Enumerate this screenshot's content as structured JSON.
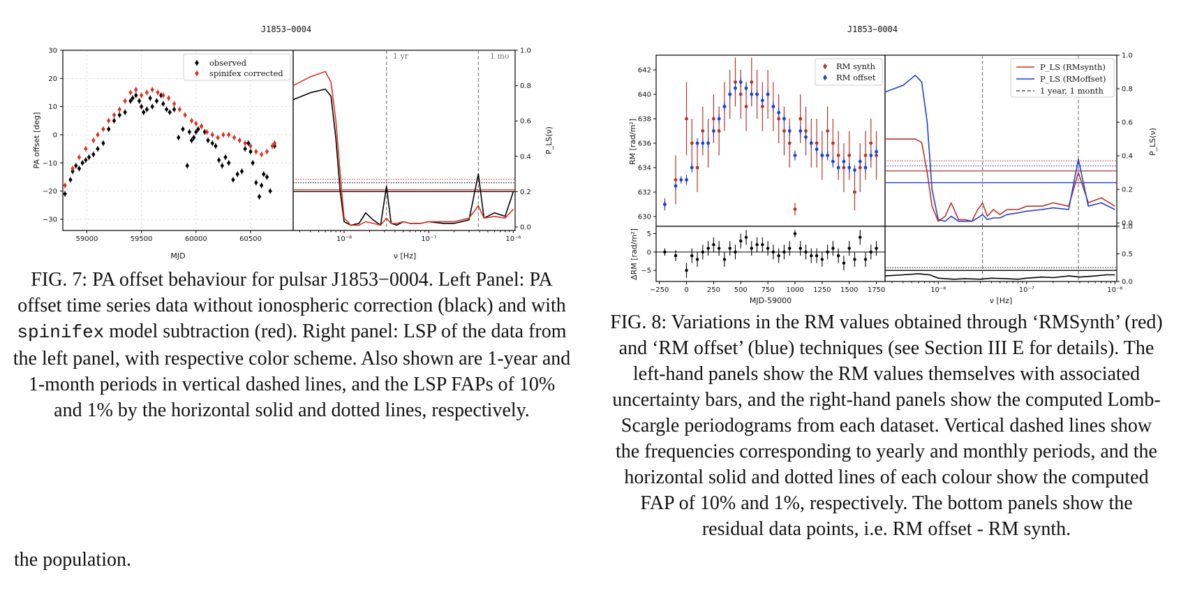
{
  "fig7": {
    "title": "J1853−0004",
    "caption_parts": [
      "FIG. 7: PA offset behaviour for pulsar J1853−0004. Left Panel: PA offset time series data without ionospheric correction (black) and with ",
      "spinifex",
      " model subtraction (red). Right panel: LSP of the data from the left panel, with respective color scheme. Also shown are 1-year and 1-month periods in vertical dashed lines, and the LSP FAPs of 10% and 1% by the horizontal solid and dotted lines, respectively."
    ],
    "legend": [
      "observed",
      "spinifex corrected"
    ],
    "vline_labels": [
      "1 yr",
      "1 mo"
    ],
    "colors": {
      "observed": "#000000",
      "corrected": "#e0301e"
    }
  },
  "fig8": {
    "title": "J1853−0004",
    "caption": "FIG. 8: Variations in the RM values obtained through ‘RMSynth’ (red) and ‘RM offset’ (blue) techniques (see Section III E for details). The left-hand panels show the RM values themselves with associated uncertainty bars, and the right-hand panels show the computed Lomb-Scargle periodograms from each dataset. Vertical dashed lines show the frequencies corresponding to yearly and monthly periods, and the horizontal solid and dotted lines of each colour show the computed FAP of 10% and 1%, respectively. The bottom panels show the residual data points, i.e. RM offset - RM synth.",
    "legend_left": [
      "RM synth",
      "RM offset"
    ],
    "legend_right": [
      "P_LS (RMsynth)",
      "P_LS (RMoffset)",
      "1 year, 1 month"
    ],
    "colors": {
      "rmsynth": "#b5322a",
      "rmoffset": "#1f3fd0",
      "residual": "#000000"
    }
  },
  "body_text": "the population.",
  "chart_data": [
    {
      "type": "scatter",
      "title": "J1853−0004",
      "xlabel": "MJD",
      "ylabel": "PA offset [deg]",
      "xlim": [
        58780,
        60890
      ],
      "ylim": [
        -34,
        30
      ],
      "xticks": [
        59000,
        59500,
        60000,
        60500
      ],
      "yticks": [
        -30,
        -20,
        -10,
        0,
        10,
        20,
        30
      ],
      "legend": "top-right",
      "grid": true,
      "series": [
        {
          "name": "observed",
          "x": [
            58800,
            58850,
            58870,
            58900,
            58930,
            58960,
            58990,
            59020,
            59060,
            59100,
            59150,
            59200,
            59250,
            59300,
            59350,
            59400,
            59420,
            59450,
            59480,
            59500,
            59520,
            59550,
            59580,
            59600,
            59640,
            59680,
            59700,
            59730,
            59760,
            59800,
            59840,
            59880,
            59920,
            59940,
            59960,
            59980,
            60000,
            60020,
            60050,
            60080,
            60110,
            60150,
            60180,
            60210,
            60240,
            60270,
            60300,
            60340,
            60380,
            60420,
            60450,
            60480,
            60500,
            60520,
            60550,
            60580,
            60600,
            60620,
            60650,
            60680,
            60720
          ],
          "y": [
            -21,
            -16,
            -13,
            -11,
            -12,
            -10,
            -9,
            -8,
            -7,
            -5,
            -3,
            2,
            5,
            7,
            8,
            12,
            13,
            14,
            12,
            10,
            8,
            9,
            13,
            10,
            12,
            14,
            11,
            9,
            8,
            9,
            -1,
            2,
            -11,
            1,
            -2,
            -1,
            1,
            2,
            3,
            1,
            -2,
            -3,
            -4,
            -9,
            -11,
            -8,
            -10,
            -16,
            -14,
            -13,
            -5,
            -3,
            -6,
            -10,
            -17,
            -22,
            -18,
            -14,
            -15,
            -20,
            -4
          ]
        },
        {
          "name": "spinifex corrected",
          "x": [
            58800,
            58870,
            58930,
            58990,
            59060,
            59100,
            59150,
            59200,
            59250,
            59300,
            59350,
            59400,
            59450,
            59500,
            59550,
            59600,
            59650,
            59700,
            59750,
            59800,
            59850,
            59900,
            59960,
            60000,
            60050,
            60100,
            60150,
            60200,
            60250,
            60300,
            60350,
            60400,
            60450,
            60500,
            60550,
            60600,
            60650,
            60700,
            60720
          ],
          "y": [
            -18,
            -12,
            -8,
            -5,
            -2,
            0,
            2,
            5,
            7,
            9,
            12,
            15,
            16,
            14,
            15,
            16,
            15,
            14,
            13,
            11,
            9,
            7,
            5,
            4,
            3,
            1,
            0,
            -1,
            0,
            0,
            -1,
            -2,
            -3,
            -4,
            -6,
            -7,
            -6,
            -4,
            -3
          ]
        }
      ]
    },
    {
      "type": "line",
      "xlabel": "ν [Hz]",
      "ylabel": "P_LS(ν)",
      "xscale": "log",
      "xlim": [
        2.5e-09,
        1.05e-06
      ],
      "ylim": [
        -0.02,
        1.0
      ],
      "xticks": [
        "10⁻⁸",
        "10⁻⁷",
        "10⁻⁶"
      ],
      "yticks": [
        0.0,
        0.2,
        0.4,
        0.6,
        0.8,
        1.0
      ],
      "vlines": [
        3.17e-08,
        3.86e-07
      ],
      "series": [
        {
          "name": "observed",
          "x": [
            2.5e-09,
            4e-09,
            6e-09,
            7e-09,
            8e-09,
            9e-09,
            1e-08,
            1.2e-08,
            1.5e-08,
            1.8e-08,
            2.2e-08,
            2.7e-08,
            3.17e-08,
            3.6e-08,
            4.2e-08,
            5e-08,
            6e-08,
            8e-08,
            1e-07,
            1.5e-07,
            2e-07,
            3e-07,
            3.86e-07,
            4.5e-07,
            6e-07,
            8e-07,
            1e-06
          ],
          "y": [
            0.72,
            0.76,
            0.78,
            0.74,
            0.5,
            0.2,
            0.03,
            0.01,
            0.02,
            0.08,
            0.04,
            0.01,
            0.23,
            0.02,
            0.01,
            0.03,
            0.02,
            0.02,
            0.03,
            0.02,
            0.02,
            0.04,
            0.3,
            0.05,
            0.08,
            0.06,
            0.2
          ]
        },
        {
          "name": "spinifex corrected",
          "x": [
            2.5e-09,
            4e-09,
            6e-09,
            7e-09,
            8e-09,
            9e-09,
            1e-08,
            1.2e-08,
            1.5e-08,
            1.8e-08,
            2.2e-08,
            2.7e-08,
            3.17e-08,
            3.6e-08,
            4.2e-08,
            5e-08,
            6e-08,
            8e-08,
            1e-07,
            1.5e-07,
            2e-07,
            3e-07,
            3.86e-07,
            4.5e-07,
            6e-07,
            8e-07,
            1e-06
          ],
          "y": [
            0.8,
            0.85,
            0.88,
            0.82,
            0.6,
            0.3,
            0.05,
            0.01,
            0.01,
            0.03,
            0.02,
            0.01,
            0.05,
            0.02,
            0.02,
            0.03,
            0.02,
            0.02,
            0.03,
            0.03,
            0.03,
            0.05,
            0.12,
            0.05,
            0.06,
            0.05,
            0.1
          ]
        }
      ],
      "fap": {
        "observed": {
          "p10": 0.2,
          "p1": 0.25
        },
        "corrected": {
          "p10": 0.21,
          "p1": 0.27
        }
      }
    },
    {
      "type": "scatter",
      "title": "J1853−0004",
      "ylabel": "RM [rad/m²]",
      "xlim": [
        -280,
        1830
      ],
      "ylim": [
        629.2,
        643.2
      ],
      "yticks": [
        630,
        632,
        634,
        636,
        638,
        640,
        642
      ],
      "legend": "top-right",
      "series": [
        {
          "name": "RM synth",
          "x": [
            -200,
            -100,
            0,
            50,
            100,
            150,
            200,
            250,
            300,
            350,
            400,
            450,
            500,
            550,
            600,
            650,
            700,
            750,
            800,
            850,
            900,
            950,
            1000,
            1050,
            1100,
            1150,
            1200,
            1250,
            1300,
            1350,
            1400,
            1450,
            1500,
            1550,
            1600,
            1650,
            1700,
            1750
          ],
          "y": [
            631,
            633,
            638,
            636,
            634,
            637,
            636,
            638,
            637,
            639,
            640,
            641,
            640,
            639,
            641,
            640,
            639,
            640,
            639,
            638,
            637,
            636,
            630.6,
            638,
            637,
            636,
            636,
            635,
            637,
            636,
            635,
            634,
            635,
            632,
            634,
            635,
            636,
            635
          ],
          "err": [
            0.5,
            2,
            3,
            2,
            2,
            2,
            2,
            2,
            2,
            2,
            2,
            2,
            2,
            2,
            2,
            2,
            2,
            2,
            2,
            2,
            2,
            2,
            0.5,
            2,
            2,
            2,
            2,
            2,
            2,
            2,
            2,
            2,
            2,
            1.5,
            2,
            2,
            2,
            2
          ]
        },
        {
          "name": "RM offset",
          "x": [
            -200,
            -100,
            -50,
            0,
            50,
            100,
            150,
            200,
            250,
            300,
            350,
            400,
            450,
            500,
            550,
            600,
            650,
            700,
            750,
            800,
            850,
            900,
            950,
            1000,
            1050,
            1100,
            1150,
            1200,
            1250,
            1300,
            1350,
            1400,
            1450,
            1500,
            1550,
            1600,
            1650,
            1700,
            1750
          ],
          "y": [
            631,
            632.5,
            633,
            633,
            634,
            636,
            636,
            636,
            637,
            638,
            639,
            640,
            640.5,
            641,
            640.5,
            640,
            640,
            639.5,
            640,
            639,
            638.5,
            638,
            637,
            635,
            637,
            636.5,
            636,
            635.5,
            635,
            635,
            634.5,
            634,
            634.5,
            634,
            633.8,
            634.5,
            634,
            635,
            635.3
          ],
          "err": [
            0.3,
            0.3,
            0.3,
            0.4,
            0.4,
            0.4,
            0.4,
            0.4,
            0.4,
            0.4,
            0.4,
            0.4,
            0.4,
            0.4,
            0.4,
            0.4,
            0.4,
            0.4,
            0.4,
            0.4,
            0.4,
            0.4,
            0.4,
            0.4,
            0.4,
            0.4,
            0.4,
            0.4,
            0.4,
            0.4,
            0.4,
            0.4,
            0.4,
            0.4,
            0.4,
            0.4,
            0.4,
            0.4,
            0.4
          ]
        }
      ]
    },
    {
      "type": "scatter",
      "xlabel": "MJD-59000",
      "ylabel": "ΔRM [rad/m²]",
      "xlim": [
        -280,
        1830
      ],
      "ylim": [
        -8,
        7
      ],
      "xticks": [
        -250,
        0,
        250,
        500,
        750,
        1000,
        1250,
        1500,
        1750
      ],
      "yticks": [
        -5,
        0,
        5
      ],
      "series": [
        {
          "name": "residual",
          "x": [
            -200,
            -100,
            0,
            50,
            100,
            150,
            200,
            250,
            300,
            350,
            400,
            450,
            500,
            550,
            600,
            650,
            700,
            750,
            800,
            850,
            900,
            950,
            1000,
            1050,
            1100,
            1150,
            1200,
            1250,
            1300,
            1350,
            1400,
            1450,
            1500,
            1550,
            1600,
            1650,
            1700,
            1750
          ],
          "y": [
            0,
            -1,
            -5,
            -1,
            -2,
            0,
            1,
            2,
            1,
            -2,
            1,
            0,
            3,
            4,
            1,
            2,
            2,
            1,
            0,
            -1,
            0,
            1,
            5,
            1,
            0,
            -1,
            -1,
            -2,
            0,
            1,
            -1,
            -3,
            1,
            -2,
            4,
            -2,
            0,
            1
          ],
          "err": [
            1,
            1.5,
            2,
            2,
            2,
            2,
            2,
            2,
            2,
            2,
            2,
            2,
            2,
            2,
            2,
            2,
            2,
            2,
            2,
            2,
            2,
            2,
            1,
            2,
            2,
            2,
            2,
            2,
            2,
            2,
            2,
            2,
            2,
            2,
            2,
            2,
            2,
            2
          ]
        }
      ]
    },
    {
      "type": "line",
      "xscale": "log",
      "xlim": [
        2.5e-09,
        1.05e-06
      ],
      "ylim": [
        -0.02,
        1.0
      ],
      "yticks": [
        0.0,
        0.2,
        0.4,
        0.6,
        0.8,
        1.0
      ],
      "vlines": [
        3.17e-08,
        3.86e-07
      ],
      "series": [
        {
          "name": "P_LS (RMsynth)",
          "x": [
            2.5e-09,
            4e-09,
            5.5e-09,
            6.5e-09,
            7.5e-09,
            8.5e-09,
            1e-08,
            1.2e-08,
            1.4e-08,
            1.7e-08,
            2e-08,
            2.4e-08,
            2.8e-08,
            3.17e-08,
            3.6e-08,
            4.2e-08,
            5e-08,
            6e-08,
            8e-08,
            1e-07,
            1.5e-07,
            2e-07,
            3e-07,
            3.86e-07,
            5e-07,
            7e-07,
            1e-06
          ],
          "y": [
            0.5,
            0.5,
            0.5,
            0.48,
            0.3,
            0.1,
            0.01,
            0.04,
            0.12,
            0.02,
            0.02,
            0.01,
            0.08,
            0.12,
            0.04,
            0.08,
            0.05,
            0.08,
            0.08,
            0.1,
            0.1,
            0.12,
            0.1,
            0.3,
            0.12,
            0.15,
            0.1
          ]
        },
        {
          "name": "P_LS (RMoffset)",
          "x": [
            2.5e-09,
            4e-09,
            5.5e-09,
            6.5e-09,
            7.5e-09,
            8.5e-09,
            1e-08,
            1.2e-08,
            1.4e-08,
            1.7e-08,
            2e-08,
            2.4e-08,
            2.8e-08,
            3.17e-08,
            3.6e-08,
            4.2e-08,
            5e-08,
            6e-08,
            8e-08,
            1e-07,
            1.5e-07,
            2e-07,
            3e-07,
            3.86e-07,
            5e-07,
            7e-07,
            1e-06
          ],
          "y": [
            0.78,
            0.82,
            0.88,
            0.84,
            0.6,
            0.2,
            0.02,
            0.01,
            0.04,
            0.01,
            0.01,
            0.01,
            0.03,
            0.05,
            0.02,
            0.03,
            0.03,
            0.05,
            0.06,
            0.07,
            0.08,
            0.09,
            0.08,
            0.38,
            0.1,
            0.12,
            0.08
          ]
        }
      ],
      "fap": {
        "rmsynth": {
          "p10": 0.31,
          "p1": 0.37
        },
        "rmoffset": {
          "p10": 0.24,
          "p1": 0.34
        }
      }
    },
    {
      "type": "line",
      "xlabel": "ν [Hz]",
      "xscale": "log",
      "xlim": [
        2.5e-09,
        1.05e-06
      ],
      "ylim": [
        0.0,
        1.0
      ],
      "yticks": [
        0.0,
        0.5,
        1.0
      ],
      "vlines": [
        3.17e-08,
        3.86e-07
      ],
      "series": [
        {
          "name": "residual",
          "x": [
            2.5e-09,
            4e-09,
            6e-09,
            8e-09,
            1e-08,
            1.5e-08,
            2e-08,
            3e-08,
            4e-08,
            6e-08,
            8e-08,
            1e-07,
            1.5e-07,
            2e-07,
            3e-07,
            4e-07,
            6e-07,
            8e-07,
            1e-06
          ],
          "y": [
            0.1,
            0.12,
            0.14,
            0.12,
            0.06,
            0.04,
            0.05,
            0.04,
            0.06,
            0.05,
            0.04,
            0.06,
            0.08,
            0.07,
            0.1,
            0.08,
            0.1,
            0.12,
            0.12
          ]
        }
      ],
      "fap": {
        "p10": 0.2,
        "p1": 0.25
      }
    }
  ]
}
